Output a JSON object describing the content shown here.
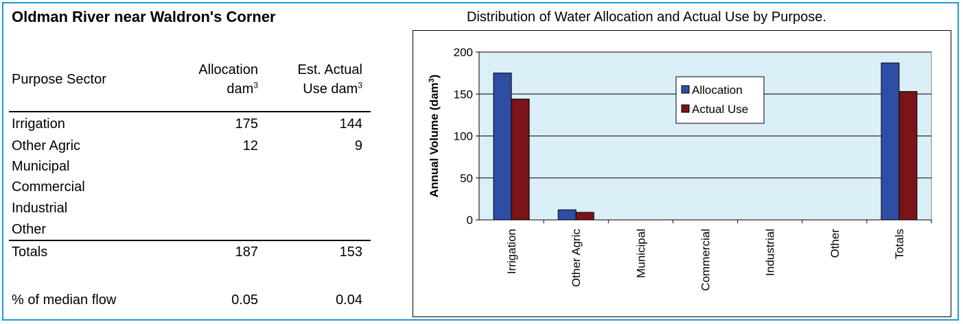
{
  "left_title": "Oldman River near Waldron's Corner",
  "table": {
    "header": {
      "sector": "Purpose Sector",
      "alloc_line1": "Allocation",
      "alloc_line2": "dam",
      "use_line1": "Est. Actual",
      "use_line2": "Use dam",
      "unit_sup": "3"
    },
    "rows": [
      {
        "sector": "Irrigation",
        "allocation": "175",
        "use": "144"
      },
      {
        "sector": "Other Agric",
        "allocation": "12",
        "use": "9"
      },
      {
        "sector": "Municipal",
        "allocation": "",
        "use": ""
      },
      {
        "sector": "Commercial",
        "allocation": "",
        "use": ""
      },
      {
        "sector": "Industrial",
        "allocation": "",
        "use": ""
      },
      {
        "sector": "Other",
        "allocation": "",
        "use": ""
      }
    ],
    "totals": {
      "sector": "Totals",
      "allocation": "187",
      "use": "153"
    },
    "median": {
      "sector": "% of median flow",
      "allocation": "0.05",
      "use": "0.04"
    }
  },
  "chart_data": {
    "type": "bar",
    "title": "Distribution of Water Allocation and Actual Use by Purpose.",
    "ylabel": "Annual Volume (dam",
    "ylabel_sup": "3",
    "ylabel_close": ")",
    "categories": [
      "Irrigation",
      "Other Agric",
      "Municipal",
      "Commercial",
      "Industrial",
      "Other",
      "Totals"
    ],
    "series": [
      {
        "name": "Allocation",
        "values": [
          175,
          12,
          0,
          0,
          0,
          0,
          187
        ],
        "color": "#2e4ea3"
      },
      {
        "name": "Actual Use",
        "values": [
          144,
          9,
          0,
          0,
          0,
          0,
          153
        ],
        "color": "#7a1416"
      }
    ],
    "ylim": [
      0,
      200
    ],
    "yticks": [
      0,
      50,
      100,
      150,
      200
    ],
    "grid": true,
    "legend": "top-center",
    "plot_background": "#dbeff9"
  },
  "colors": {
    "frame": "#1a9ad7"
  }
}
